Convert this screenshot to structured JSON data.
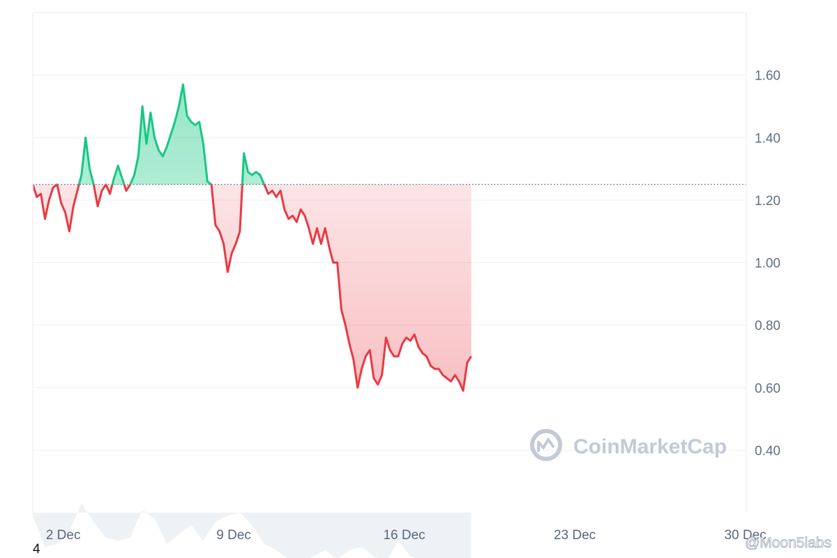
{
  "chart_data": {
    "type": "line",
    "title": "",
    "xlabel": "",
    "ylabel": "",
    "baseline": 1.25,
    "ylim": [
      0.2,
      1.8
    ],
    "yticks": [
      0.4,
      0.6,
      0.8,
      1.0,
      1.2,
      1.4,
      1.6
    ],
    "ytick_labels": [
      "0.40",
      "0.60",
      "0.80",
      "1.00",
      "1.20",
      "1.40",
      "1.60"
    ],
    "xlim": [
      "2024-11-30T18:00",
      "2024-12-30T01:00"
    ],
    "xticks": [
      "2024-12-02",
      "2024-12-09",
      "2024-12-16",
      "2024-12-23",
      "2024-12-30"
    ],
    "xtick_labels": [
      "2 Dec",
      "9 Dec",
      "16 Dec",
      "23 Dec",
      "30 Dec"
    ],
    "colors": {
      "up": "#16c784",
      "down": "#ea3943",
      "volume": "#eff2f5",
      "grid": "#eff2f5",
      "baseline": "#58667e"
    },
    "grid": true,
    "watermark": "CoinMarketCap",
    "series": [
      {
        "values": [
          [
            "2024-11-30T18:00",
            1.25
          ],
          [
            "2024-11-30T22:00",
            1.21
          ],
          [
            "2024-12-01T02:00",
            1.22
          ],
          [
            "2024-12-01T06:00",
            1.14
          ],
          [
            "2024-12-01T10:00",
            1.2
          ],
          [
            "2024-12-01T14:00",
            1.24
          ],
          [
            "2024-12-01T18:00",
            1.25
          ],
          [
            "2024-12-01T22:00",
            1.19
          ],
          [
            "2024-12-02T02:00",
            1.16
          ],
          [
            "2024-12-02T06:00",
            1.1
          ],
          [
            "2024-12-02T10:00",
            1.18
          ],
          [
            "2024-12-02T14:00",
            1.23
          ],
          [
            "2024-12-02T18:00",
            1.28
          ],
          [
            "2024-12-02T22:00",
            1.4
          ],
          [
            "2024-12-03T02:00",
            1.3
          ],
          [
            "2024-12-03T06:00",
            1.25
          ],
          [
            "2024-12-03T10:00",
            1.18
          ],
          [
            "2024-12-03T14:00",
            1.23
          ],
          [
            "2024-12-03T18:00",
            1.25
          ],
          [
            "2024-12-03T22:00",
            1.22
          ],
          [
            "2024-12-04T02:00",
            1.27
          ],
          [
            "2024-12-04T06:00",
            1.31
          ],
          [
            "2024-12-04T10:00",
            1.27
          ],
          [
            "2024-12-04T14:00",
            1.23
          ],
          [
            "2024-12-04T18:00",
            1.25
          ],
          [
            "2024-12-04T22:00",
            1.28
          ],
          [
            "2024-12-05T02:00",
            1.34
          ],
          [
            "2024-12-05T06:00",
            1.5
          ],
          [
            "2024-12-05T10:00",
            1.38
          ],
          [
            "2024-12-05T14:00",
            1.48
          ],
          [
            "2024-12-05T18:00",
            1.4
          ],
          [
            "2024-12-05T22:00",
            1.36
          ],
          [
            "2024-12-06T02:00",
            1.34
          ],
          [
            "2024-12-06T06:00",
            1.37
          ],
          [
            "2024-12-06T10:00",
            1.41
          ],
          [
            "2024-12-06T14:00",
            1.45
          ],
          [
            "2024-12-06T18:00",
            1.5
          ],
          [
            "2024-12-06T22:00",
            1.57
          ],
          [
            "2024-12-07T02:00",
            1.47
          ],
          [
            "2024-12-07T06:00",
            1.45
          ],
          [
            "2024-12-07T10:00",
            1.44
          ],
          [
            "2024-12-07T14:00",
            1.45
          ],
          [
            "2024-12-07T18:00",
            1.38
          ],
          [
            "2024-12-07T22:00",
            1.26
          ],
          [
            "2024-12-08T02:00",
            1.25
          ],
          [
            "2024-12-08T06:00",
            1.12
          ],
          [
            "2024-12-08T10:00",
            1.1
          ],
          [
            "2024-12-08T14:00",
            1.06
          ],
          [
            "2024-12-08T18:00",
            0.97
          ],
          [
            "2024-12-08T22:00",
            1.03
          ],
          [
            "2024-12-09T02:00",
            1.06
          ],
          [
            "2024-12-09T06:00",
            1.1
          ],
          [
            "2024-12-09T10:00",
            1.35
          ],
          [
            "2024-12-09T14:00",
            1.29
          ],
          [
            "2024-12-09T18:00",
            1.28
          ],
          [
            "2024-12-09T22:00",
            1.29
          ],
          [
            "2024-12-10T02:00",
            1.28
          ],
          [
            "2024-12-10T06:00",
            1.25
          ],
          [
            "2024-12-10T10:00",
            1.22
          ],
          [
            "2024-12-10T14:00",
            1.23
          ],
          [
            "2024-12-10T18:00",
            1.21
          ],
          [
            "2024-12-10T22:00",
            1.23
          ],
          [
            "2024-12-11T02:00",
            1.17
          ],
          [
            "2024-12-11T06:00",
            1.14
          ],
          [
            "2024-12-11T10:00",
            1.15
          ],
          [
            "2024-12-11T14:00",
            1.13
          ],
          [
            "2024-12-11T18:00",
            1.17
          ],
          [
            "2024-12-11T22:00",
            1.15
          ],
          [
            "2024-12-12T02:00",
            1.11
          ],
          [
            "2024-12-12T06:00",
            1.06
          ],
          [
            "2024-12-12T10:00",
            1.11
          ],
          [
            "2024-12-12T14:00",
            1.06
          ],
          [
            "2024-12-12T18:00",
            1.11
          ],
          [
            "2024-12-12T22:00",
            1.05
          ],
          [
            "2024-12-13T02:00",
            1.0
          ],
          [
            "2024-12-13T06:00",
            1.0
          ],
          [
            "2024-12-13T10:00",
            0.85
          ],
          [
            "2024-12-13T14:00",
            0.8
          ],
          [
            "2024-12-13T18:00",
            0.74
          ],
          [
            "2024-12-13T22:00",
            0.69
          ],
          [
            "2024-12-14T02:00",
            0.6
          ],
          [
            "2024-12-14T06:00",
            0.66
          ],
          [
            "2024-12-14T10:00",
            0.7
          ],
          [
            "2024-12-14T14:00",
            0.72
          ],
          [
            "2024-12-14T18:00",
            0.63
          ],
          [
            "2024-12-14T22:00",
            0.61
          ],
          [
            "2024-12-15T02:00",
            0.64
          ],
          [
            "2024-12-15T06:00",
            0.76
          ],
          [
            "2024-12-15T10:00",
            0.72
          ],
          [
            "2024-12-15T14:00",
            0.7
          ],
          [
            "2024-12-15T18:00",
            0.7
          ],
          [
            "2024-12-15T22:00",
            0.74
          ],
          [
            "2024-12-16T02:00",
            0.76
          ],
          [
            "2024-12-16T06:00",
            0.75
          ],
          [
            "2024-12-16T10:00",
            0.77
          ],
          [
            "2024-12-16T14:00",
            0.73
          ],
          [
            "2024-12-16T18:00",
            0.71
          ],
          [
            "2024-12-16T22:00",
            0.7
          ],
          [
            "2024-12-17T02:00",
            0.67
          ],
          [
            "2024-12-17T06:00",
            0.66
          ],
          [
            "2024-12-17T10:00",
            0.66
          ],
          [
            "2024-12-17T14:00",
            0.64
          ],
          [
            "2024-12-17T18:00",
            0.63
          ],
          [
            "2024-12-17T22:00",
            0.62
          ],
          [
            "2024-12-18T02:00",
            0.64
          ],
          [
            "2024-12-18T06:00",
            0.62
          ],
          [
            "2024-12-18T10:00",
            0.59
          ],
          [
            "2024-12-18T14:00",
            0.68
          ],
          [
            "2024-12-18T18:00",
            0.7
          ]
        ]
      }
    ],
    "volume": [
      [
        "2024-11-30T18:00",
        0.19
      ],
      [
        "2024-12-01T06:00",
        0.09
      ],
      [
        "2024-12-01T18:00",
        0.1
      ],
      [
        "2024-12-02T06:00",
        0.14
      ],
      [
        "2024-12-02T18:00",
        0.23
      ],
      [
        "2024-12-03T06:00",
        0.17
      ],
      [
        "2024-12-03T18:00",
        0.12
      ],
      [
        "2024-12-04T06:00",
        0.11
      ],
      [
        "2024-12-04T18:00",
        0.12
      ],
      [
        "2024-12-05T06:00",
        0.21
      ],
      [
        "2024-12-05T18:00",
        0.18
      ],
      [
        "2024-12-06T06:00",
        0.1
      ],
      [
        "2024-12-06T18:00",
        0.13
      ],
      [
        "2024-12-07T06:00",
        0.16
      ],
      [
        "2024-12-07T18:00",
        0.11
      ],
      [
        "2024-12-08T06:00",
        0.17
      ],
      [
        "2024-12-08T18:00",
        0.19
      ],
      [
        "2024-12-09T06:00",
        0.2
      ],
      [
        "2024-12-09T18:00",
        0.16
      ],
      [
        "2024-12-10T06:00",
        0.1
      ],
      [
        "2024-12-10T18:00",
        0.08
      ],
      [
        "2024-12-11T06:00",
        0.05
      ],
      [
        "2024-12-11T18:00",
        0.04
      ],
      [
        "2024-12-12T06:00",
        0.06
      ],
      [
        "2024-12-12T18:00",
        0.08
      ],
      [
        "2024-12-13T06:00",
        0.05
      ],
      [
        "2024-12-13T18:00",
        0.08
      ],
      [
        "2024-12-14T06:00",
        0.09
      ],
      [
        "2024-12-14T18:00",
        0.06
      ],
      [
        "2024-12-15T06:00",
        0.04
      ],
      [
        "2024-12-15T18:00",
        0.11
      ],
      [
        "2024-12-16T06:00",
        0.06
      ],
      [
        "2024-12-16T18:00",
        0.05
      ],
      [
        "2024-12-17T06:00",
        0.03
      ],
      [
        "2024-12-17T18:00",
        0.02
      ],
      [
        "2024-12-18T06:00",
        0.02
      ],
      [
        "2024-12-18T18:00",
        0.05
      ]
    ]
  },
  "overlay": {
    "page_number": "4",
    "credit": "@Moon5labs"
  }
}
